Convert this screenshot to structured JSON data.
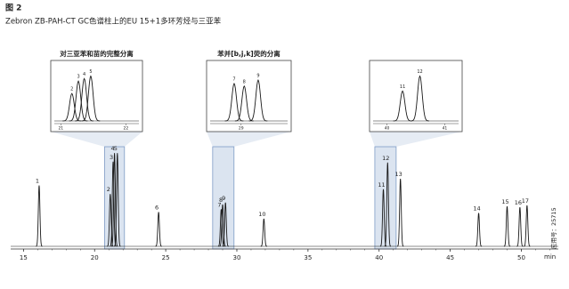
{
  "chart_data": {
    "type": "chromatogram",
    "figure_label": "图 2",
    "title": "Zebron ZB-PAH-CT GC色谱柱上的EU 15+1多环芳烃与三亚苯",
    "x_unit": "min",
    "application_note": "应用号：25715",
    "color": "#1a1a1a",
    "band_color": "#dbe4f0",
    "xlim": [
      14.1,
      52.6
    ],
    "xticks": [
      15,
      20,
      25,
      30,
      35,
      40,
      45,
      50
    ],
    "ylim": [
      0,
      100
    ],
    "peaks": {
      "labels": [
        "1",
        "2",
        "3",
        "4",
        "5",
        "6",
        "7",
        "8",
        "9",
        "10",
        "11",
        "12",
        "13",
        "14",
        "15",
        "16",
        "17"
      ],
      "x": [
        16.1,
        21.1,
        21.3,
        21.4,
        21.6,
        24.5,
        28.9,
        29.0,
        29.2,
        31.9,
        40.3,
        40.6,
        41.5,
        47.0,
        49.0,
        49.9,
        50.4
      ],
      "values": [
        64,
        55,
        89,
        98,
        98,
        36,
        39,
        44,
        46,
        29,
        60,
        88,
        71,
        35,
        42,
        41,
        43
      ]
    },
    "insets": [
      {
        "title": "对三亚苯和苗的完整分离",
        "range": [
          20.7,
          22.1
        ],
        "xlim": [
          20.9,
          22.2
        ],
        "xticks": [
          21,
          22
        ],
        "labels": [
          "2",
          "3",
          "4",
          "5"
        ],
        "x": [
          21.17,
          21.27,
          21.36,
          21.46
        ],
        "values": [
          55,
          80,
          85,
          90
        ]
      },
      {
        "title": "苯并[b,j,k]荧的分离",
        "range": [
          28.3,
          29.8
        ],
        "xlim": [
          28.6,
          29.6
        ],
        "xticks": [
          29
        ],
        "labels": [
          "7",
          "8",
          "9"
        ],
        "x": [
          28.91,
          29.04,
          29.22
        ],
        "values": [
          75,
          70,
          82
        ]
      },
      {
        "title": "",
        "range": [
          39.7,
          41.2
        ],
        "xlim": [
          39.76,
          41.24
        ],
        "xticks": [
          40,
          41
        ],
        "labels": [
          "11",
          "12"
        ],
        "x": [
          40.27,
          40.57
        ],
        "values": [
          60,
          90
        ]
      }
    ]
  }
}
